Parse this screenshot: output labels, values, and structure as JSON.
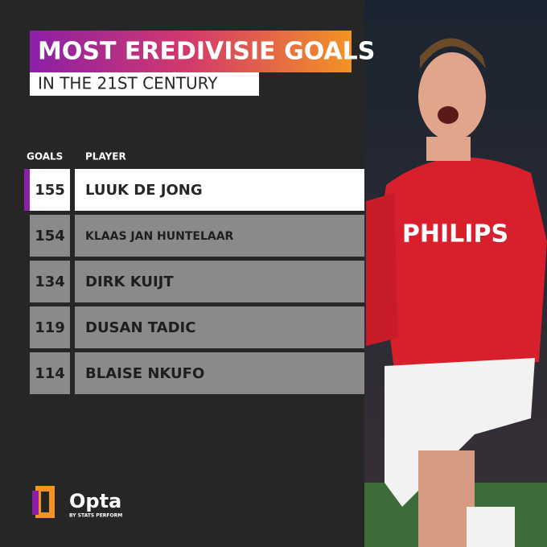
{
  "header": {
    "title": "MOST EREDIVISIE GOALS",
    "subtitle": "IN THE 21ST CENTURY"
  },
  "table": {
    "columns": [
      "GOALS",
      "PLAYER"
    ],
    "rows": [
      [
        155,
        "LUUK DE JONG"
      ],
      [
        154,
        "KLAAS JAN HUNTELAAR"
      ],
      [
        134,
        "DIRK KUIJT"
      ],
      [
        119,
        "DUSAN TADIC"
      ],
      [
        114,
        "BLAISE NKUFO"
      ]
    ]
  },
  "photo": {
    "shirt_text": "PHILIPS"
  },
  "footer": {
    "brand": "Opta",
    "tagline": "BY STATS PERFORM"
  }
}
